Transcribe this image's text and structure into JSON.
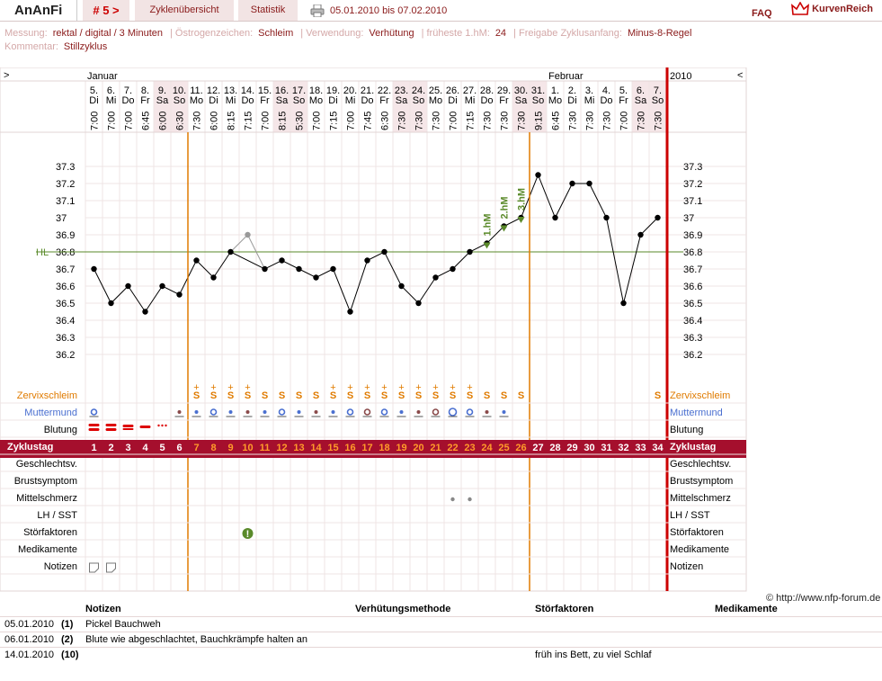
{
  "app": {
    "title": "AnAnFi",
    "cycle_nav": "# 5 >",
    "tab_overview": "Zyklenübersicht",
    "tab_stats": "Statistik",
    "date_range": "05.01.2010 bis 07.02.2010",
    "faq": "FAQ",
    "brand": "KurvenReich",
    "print_icon": "printer-icon"
  },
  "meta": {
    "row1": [
      {
        "label": "Messung:",
        "value": "rektal / digital / 3 Minuten"
      },
      {
        "label": "Östrogenzeichen:",
        "value": "Schleim"
      },
      {
        "label": "Verwendung:",
        "value": "Verhütung"
      },
      {
        "label": "früheste 1.hM:",
        "value": "24"
      },
      {
        "label": "Freigabe Zyklusanfang:",
        "value": "Minus-8-Regel"
      }
    ],
    "row2": [
      {
        "label": "Kommentar:",
        "value": "Stillzyklus"
      }
    ]
  },
  "chart_header": {
    "left_arrow": ">",
    "right_arrow": "<",
    "month1": "Januar",
    "month2": "Februar",
    "year": "2010"
  },
  "days": [
    {
      "d": "5.",
      "w": "Di",
      "t": "7:00",
      "n": "1"
    },
    {
      "d": "6.",
      "w": "Mi",
      "t": "7:00",
      "n": "2"
    },
    {
      "d": "7.",
      "w": "Do",
      "t": "7:00",
      "n": "3"
    },
    {
      "d": "8.",
      "w": "Fr",
      "t": "6:45",
      "n": "4"
    },
    {
      "d": "9.",
      "w": "Sa",
      "t": "6:00",
      "n": "5"
    },
    {
      "d": "10.",
      "w": "So",
      "t": "6:30",
      "n": "6"
    },
    {
      "d": "11.",
      "w": "Mo",
      "t": "7:30",
      "n": "7"
    },
    {
      "d": "12.",
      "w": "Di",
      "t": "6:00",
      "n": "8"
    },
    {
      "d": "13.",
      "w": "Mi",
      "t": "8:15",
      "n": "9"
    },
    {
      "d": "14.",
      "w": "Do",
      "t": "7:15",
      "n": "10"
    },
    {
      "d": "15.",
      "w": "Fr",
      "t": "7:00",
      "n": "11"
    },
    {
      "d": "16.",
      "w": "Sa",
      "t": "8:15",
      "n": "12"
    },
    {
      "d": "17.",
      "w": "So",
      "t": "5:30",
      "n": "13"
    },
    {
      "d": "18.",
      "w": "Mo",
      "t": "7:00",
      "n": "14"
    },
    {
      "d": "19.",
      "w": "Di",
      "t": "7:15",
      "n": "15"
    },
    {
      "d": "20.",
      "w": "Mi",
      "t": "7:00",
      "n": "16"
    },
    {
      "d": "21.",
      "w": "Do",
      "t": "7:45",
      "n": "17"
    },
    {
      "d": "22.",
      "w": "Fr",
      "t": "6:30",
      "n": "18"
    },
    {
      "d": "23.",
      "w": "Sa",
      "t": "7:30",
      "n": "19"
    },
    {
      "d": "24.",
      "w": "So",
      "t": "7:30",
      "n": "20"
    },
    {
      "d": "25.",
      "w": "Mo",
      "t": "7:30",
      "n": "21"
    },
    {
      "d": "26.",
      "w": "Di",
      "t": "7:00",
      "n": "22"
    },
    {
      "d": "27.",
      "w": "Mi",
      "t": "7:15",
      "n": "23"
    },
    {
      "d": "28.",
      "w": "Do",
      "t": "7:30",
      "n": "24"
    },
    {
      "d": "29.",
      "w": "Fr",
      "t": "7:30",
      "n": "25"
    },
    {
      "d": "30.",
      "w": "Sa",
      "t": "7:30",
      "n": "26"
    },
    {
      "d": "31.",
      "w": "So",
      "t": "9:15",
      "n": "27"
    },
    {
      "d": "1.",
      "w": "Mo",
      "t": "6:45",
      "n": "28"
    },
    {
      "d": "2.",
      "w": "Di",
      "t": "7:30",
      "n": "29"
    },
    {
      "d": "3.",
      "w": "Mi",
      "t": "7:30",
      "n": "30"
    },
    {
      "d": "4.",
      "w": "Do",
      "t": "7:30",
      "n": "31"
    },
    {
      "d": "5.",
      "w": "Fr",
      "t": "7:00",
      "n": "32"
    },
    {
      "d": "6.",
      "w": "Sa",
      "t": "7:30",
      "n": "33"
    },
    {
      "d": "7.",
      "w": "So",
      "t": "7:30",
      "n": "34"
    }
  ],
  "chart_data": {
    "type": "line",
    "y_ticks": [
      "37.3",
      "37.2",
      "37.1",
      "37",
      "36.9",
      "36.8",
      "36.7",
      "36.6",
      "36.5",
      "36.4",
      "36.3",
      "36.2"
    ],
    "ylim": [
      36.1,
      37.4
    ],
    "temps": [
      36.7,
      36.5,
      36.6,
      36.45,
      36.6,
      36.55,
      36.75,
      36.65,
      36.8,
      36.9,
      36.7,
      36.75,
      36.7,
      36.65,
      36.7,
      36.45,
      36.75,
      36.8,
      36.6,
      36.5,
      36.65,
      36.7,
      36.8,
      36.85,
      36.95,
      37.0,
      37.25,
      37.0,
      37.2,
      37.2,
      37.0,
      36.5,
      36.9,
      37.0
    ],
    "excluded_days": [
      10
    ],
    "coverline": 36.8,
    "coverline_label": "HL",
    "higher_measurements": [
      {
        "day": 24,
        "label": "1.hM"
      },
      {
        "day": 25,
        "label": "2.hM"
      },
      {
        "day": 26,
        "label": "3.hM"
      }
    ],
    "fertile_window_lines_after_day": [
      6,
      26
    ]
  },
  "rows": {
    "zervix": {
      "label": "Zervixschleim",
      "symbols": [
        "",
        "",
        "",
        "",
        "",
        "",
        "S+",
        "S+",
        "S+",
        "S+",
        "S",
        "S",
        "S",
        "S",
        "S+",
        "S+",
        "S+",
        "S+",
        "S+",
        "S+",
        "S+",
        "S+",
        "S+",
        "S",
        "S",
        "S",
        "",
        "",
        "",
        "",
        "",
        "",
        "",
        "S"
      ]
    },
    "muttermund": {
      "label": "Muttermund",
      "symbols": [
        "o",
        "",
        "",
        "",
        "",
        "•",
        "•",
        "o",
        "•",
        "•",
        "•",
        "o",
        "•",
        "•",
        "•",
        "o",
        "o",
        "o",
        "•",
        "•",
        "o",
        "O",
        "o",
        "•",
        "•",
        "",
        "",
        "",
        "",
        "",
        "",
        "",
        "",
        ""
      ]
    },
    "blutung": {
      "label": "Blutung",
      "symbols": [
        "strong",
        "strong",
        "mid",
        "light",
        "spot",
        "",
        "",
        "",
        "",
        "",
        "",
        "",
        "",
        "",
        "",
        "",
        "",
        "",
        "",
        "",
        "",
        "",
        "",
        "",
        "",
        "",
        "",
        "",
        "",
        "",
        "",
        "",
        "",
        ""
      ]
    },
    "zyklustag": {
      "label": "Zyklustag"
    },
    "geschlechtsverkehr": {
      "label": "Geschlechtsv."
    },
    "brustsymptom": {
      "label": "Brustsymptom"
    },
    "mittelschmerz": {
      "label": "Mittelschmerz",
      "days": [
        22,
        23
      ]
    },
    "lh": {
      "label": "LH / SST"
    },
    "stoerfaktoren": {
      "label": "Störfaktoren",
      "days": [
        10
      ]
    },
    "medikamente": {
      "label": "Medikamente"
    },
    "notizen": {
      "label": "Notizen",
      "days": [
        1,
        2
      ]
    }
  },
  "copyright": "© http://www.nfp-forum.de",
  "notes_table": {
    "headers": [
      "Notizen",
      "Verhütungsmethode",
      "Störfaktoren",
      "Medikamente"
    ],
    "rows": [
      {
        "date": "05.01.2010",
        "day": "(1)",
        "note": "Pickel Bauchweh",
        "method": "",
        "stoer": "",
        "med": ""
      },
      {
        "date": "06.01.2010",
        "day": "(2)",
        "note": "Blute wie abgeschlachtet, Bauchkrämpfe halten an",
        "method": "",
        "stoer": "",
        "med": ""
      },
      {
        "date": "14.01.2010",
        "day": "(10)",
        "note": "",
        "method": "",
        "stoer": "früh ins Bett, zu viel Schlaf",
        "med": ""
      }
    ]
  },
  "colors": {
    "accent": "#a50f2d",
    "orange": "#e07b00",
    "green": "#5a8a2a",
    "blue": "#4a6fd0",
    "weekend": "#f5e6e8"
  }
}
